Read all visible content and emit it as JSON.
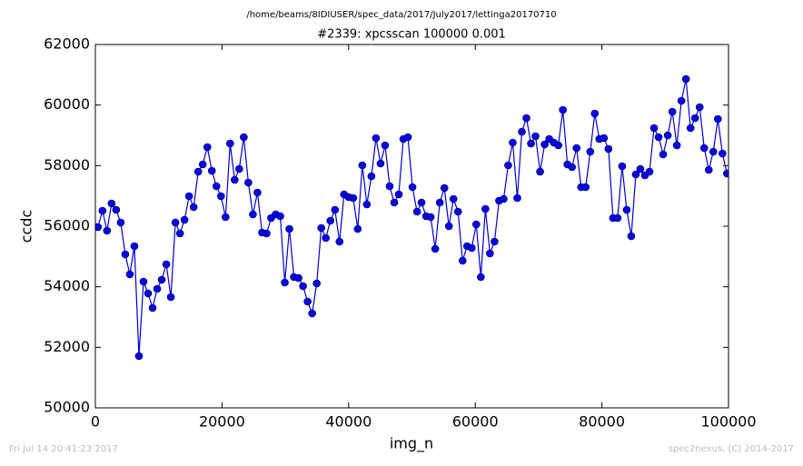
{
  "chart_data": {
    "type": "line",
    "suptitle": "/home/beams/8IDIUSER/spec_data/2017/July2017/lettinga20170710",
    "title": "#2339: xpcsscan 100000 0.001",
    "xlabel": "img_n",
    "ylabel": "ccdc",
    "timestamp": "Fri Jul 14 20:41:23 2017",
    "credit": "spec2nexus, (C) 2014-2017",
    "xlim": [
      0,
      100000
    ],
    "ylim": [
      50000,
      62000
    ],
    "xticks": [
      0,
      20000,
      40000,
      60000,
      80000,
      100000
    ],
    "yticks": [
      50000,
      52000,
      54000,
      56000,
      58000,
      60000,
      62000
    ],
    "grid": false,
    "x": [
      400,
      1120,
      1840,
      2560,
      3280,
      4000,
      4720,
      5440,
      6160,
      6880,
      7600,
      8320,
      9040,
      9760,
      10480,
      11200,
      11920,
      12640,
      13360,
      14080,
      14800,
      15520,
      16240,
      16960,
      17680,
      18400,
      19120,
      19840,
      20560,
      21280,
      22000,
      22720,
      23440,
      24160,
      24880,
      25600,
      26320,
      27040,
      27760,
      28480,
      29200,
      29920,
      30640,
      31360,
      32080,
      32800,
      33520,
      34240,
      34960,
      35680,
      36400,
      37120,
      37840,
      38560,
      39280,
      40000,
      40720,
      41440,
      42160,
      42880,
      43600,
      44320,
      45040,
      45760,
      46480,
      47200,
      47920,
      48640,
      49360,
      50080,
      50800,
      51520,
      52240,
      52960,
      53680,
      54400,
      55120,
      55840,
      56560,
      57280,
      58000,
      58720,
      59440,
      60160,
      60880,
      61600,
      62320,
      63040,
      63760,
      64480,
      65200,
      65920,
      66640,
      67360,
      68080,
      68800,
      69520,
      70240,
      70960,
      71680,
      72400,
      73120,
      73840,
      74560,
      75280,
      76000,
      76720,
      77440,
      78160,
      78880,
      79600,
      80320,
      81040,
      81760,
      82480,
      83200,
      83920,
      84640,
      85360,
      86080,
      86800,
      87520,
      88240,
      88960,
      89680,
      90400,
      91120,
      91840,
      92560,
      93280,
      94000,
      94720,
      95440,
      96160,
      96880,
      97600,
      98320,
      99040,
      99760
    ],
    "series": [
      {
        "name": "ccdc",
        "color": "#0000ff",
        "line_color": "#0000cc",
        "values": [
          55970,
          56510,
          55850,
          56750,
          56540,
          56120,
          55070,
          54410,
          55340,
          51710,
          54170,
          53780,
          53300,
          53930,
          54230,
          54740,
          53660,
          56120,
          55760,
          56210,
          56990,
          56630,
          57800,
          58040,
          58610,
          57830,
          57320,
          56990,
          56300,
          58730,
          57530,
          57890,
          58940,
          57440,
          56390,
          57110,
          55790,
          55760,
          56270,
          56390,
          56330,
          54140,
          55910,
          54320,
          54290,
          54020,
          53510,
          53120,
          54110,
          55940,
          55610,
          56180,
          56540,
          55490,
          57050,
          56960,
          56930,
          55910,
          58010,
          56720,
          57650,
          58910,
          58070,
          58670,
          57320,
          56780,
          57050,
          58880,
          58940,
          57290,
          56480,
          56780,
          56330,
          56300,
          55250,
          56780,
          57260,
          56000,
          56900,
          56480,
          54860,
          55340,
          55280,
          56060,
          54320,
          56570,
          55100,
          55490,
          56840,
          56900,
          58010,
          58760,
          56930,
          59120,
          59570,
          58730,
          58970,
          57800,
          58700,
          58880,
          58760,
          58670,
          59840,
          58040,
          57950,
          58580,
          57290,
          57290,
          58460,
          59720,
          58880,
          58910,
          58550,
          56270,
          56270,
          57980,
          56540,
          55670,
          57710,
          57890,
          57680,
          57800,
          59240,
          58940,
          58370,
          59000,
          59780,
          58670,
          60140,
          60860,
          59240,
          59570,
          59930,
          58580,
          57860,
          58460,
          59540,
          58400,
          57740
        ]
      }
    ]
  }
}
